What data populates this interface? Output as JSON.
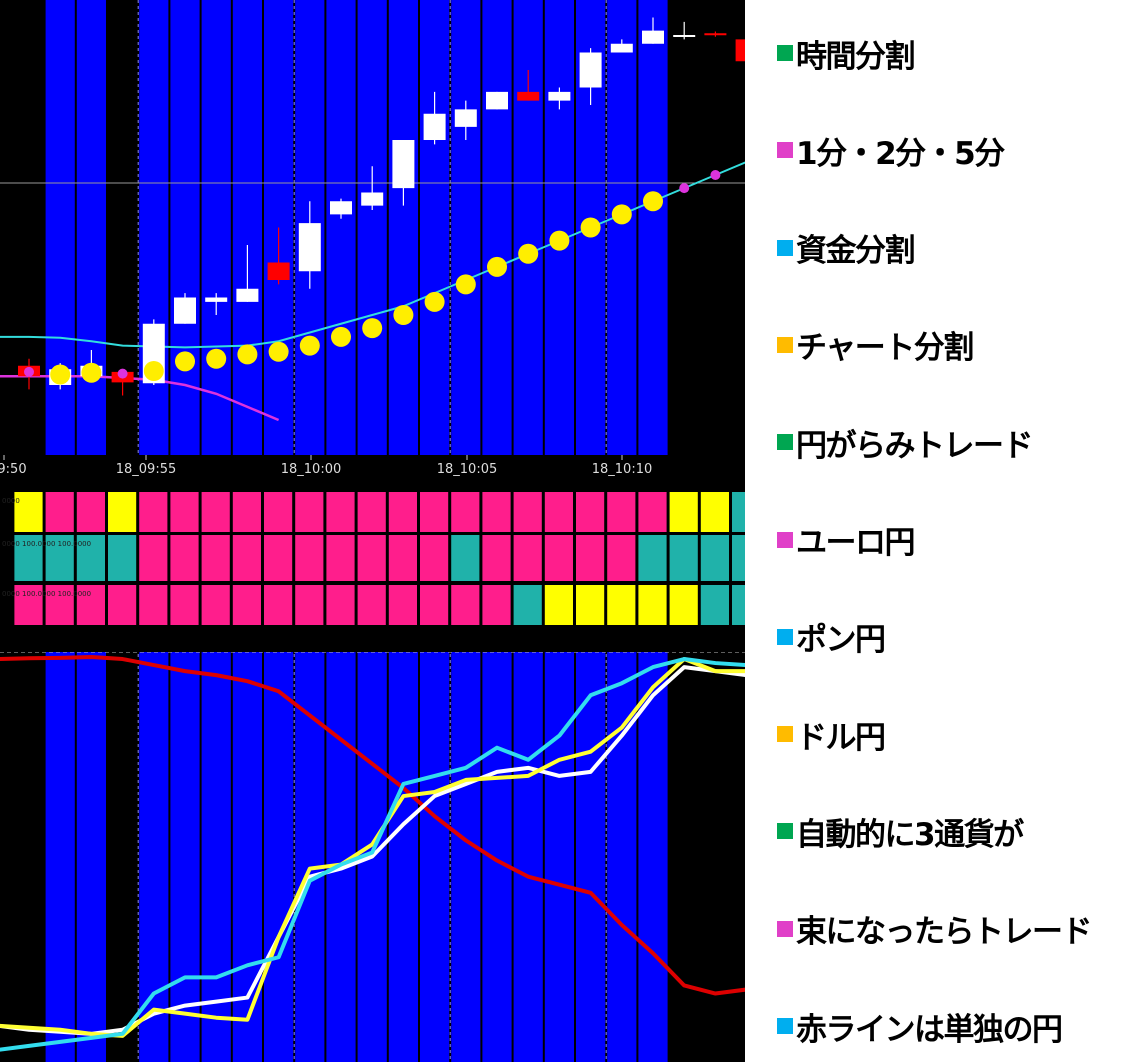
{
  "time_axis": {
    "labels": [
      "9:50",
      "18_09:55",
      "18_10:00",
      "18_10:05",
      "18_10:10"
    ]
  },
  "signal_panel": {
    "row_values": [
      "0000",
      "0000 100.0000 100.0000",
      "0000 100.0000 100.0000"
    ]
  },
  "colors": {
    "bar_blue": "#0000ff",
    "background": "#000000",
    "candle_up": "#ffffff",
    "candle_down": "#ff0000",
    "moving_average": "#33dddd",
    "dot_marker": "#ffee00",
    "magenta_line": "#dd33dd",
    "signal_pink": "#ff1e8c",
    "signal_yellow": "#ffff00",
    "signal_teal": "#20b2aa",
    "line_red": "#dd0000",
    "line_white": "#ffffff",
    "line_yellow": "#ffff33",
    "line_cyan": "#33ddee"
  },
  "legend": {
    "items": [
      {
        "label": "時間分割",
        "color": "#00a651",
        "icon": "square"
      },
      {
        "label": "1分・2分・5分",
        "color": "#e040c8",
        "icon": "square"
      },
      {
        "label": "資金分割",
        "color": "#00aeef",
        "icon": "square"
      },
      {
        "label": "チャート分割",
        "color": "#ffbb00",
        "icon": "square"
      },
      {
        "label": "円がらみトレード",
        "color": "#00a651",
        "icon": "square"
      },
      {
        "label": "ユーロ円",
        "color": "#e040c8",
        "icon": "square"
      },
      {
        "label": "ポン円",
        "color": "#00aeef",
        "icon": "square"
      },
      {
        "label": "ドル円",
        "color": "#ffbb00",
        "icon": "square"
      },
      {
        "label": "自動的に3通貨が",
        "color": "#00a651",
        "icon": "square"
      },
      {
        "label": "束になったらトレード",
        "color": "#e040c8",
        "icon": "square"
      },
      {
        "label": "赤ラインは単独の円",
        "color": "#00aeef",
        "icon": "square"
      }
    ]
  },
  "chart_data": {
    "type": "line",
    "candles": [
      {
        "o": 90.2,
        "c": 89.0,
        "h": 91.0,
        "l": 87.5
      },
      {
        "o": 88.0,
        "c": 89.8,
        "h": 90.5,
        "l": 87.5
      },
      {
        "o": 89.0,
        "c": 90.2,
        "h": 92.0,
        "l": 88.5
      },
      {
        "o": 89.5,
        "c": 88.3,
        "h": 89.8,
        "l": 86.8
      },
      {
        "o": 88.2,
        "c": 95.0,
        "h": 95.5,
        "l": 88.0
      },
      {
        "o": 95.0,
        "c": 98.0,
        "h": 98.5,
        "l": 95.0
      },
      {
        "o": 97.5,
        "c": 98.0,
        "h": 98.5,
        "l": 96.0
      },
      {
        "o": 97.5,
        "c": 99.0,
        "h": 104.0,
        "l": 97.5
      },
      {
        "o": 102.0,
        "c": 100.0,
        "h": 106.0,
        "l": 99.5
      },
      {
        "o": 101.0,
        "c": 106.5,
        "h": 109.0,
        "l": 99.0
      },
      {
        "o": 107.5,
        "c": 109.0,
        "h": 109.3,
        "l": 107.0
      },
      {
        "o": 108.5,
        "c": 110.0,
        "h": 113.0,
        "l": 108.0
      },
      {
        "o": 110.5,
        "c": 116.0,
        "h": 116.0,
        "l": 108.5
      },
      {
        "o": 116.0,
        "c": 119.0,
        "h": 121.5,
        "l": 115.5
      },
      {
        "o": 117.5,
        "c": 119.5,
        "h": 120.5,
        "l": 116.0
      },
      {
        "o": 119.5,
        "c": 121.5,
        "h": 121.5,
        "l": 119.5
      },
      {
        "o": 121.5,
        "c": 120.5,
        "h": 124.0,
        "l": 120.5
      },
      {
        "o": 120.5,
        "c": 121.5,
        "h": 122.0,
        "l": 119.5
      },
      {
        "o": 122.0,
        "c": 126.0,
        "h": 126.5,
        "l": 120.0
      },
      {
        "o": 126.0,
        "c": 127.0,
        "h": 127.5,
        "l": 126.0
      },
      {
        "o": 127.0,
        "c": 128.5,
        "h": 130.0,
        "l": 127.0
      },
      {
        "o": 128.0,
        "c": 128.0,
        "h": 129.5,
        "l": 127.5
      },
      {
        "o": 128.2,
        "c": 128.0,
        "h": 128.4,
        "l": 127.8
      },
      {
        "o": 127.5,
        "c": 125.0,
        "h": 127.8,
        "l": 124.5
      }
    ],
    "dots": [
      {
        "i": 0,
        "v": 89.5,
        "color": "magenta"
      },
      {
        "i": 1,
        "v": 89.2,
        "color": "yellow"
      },
      {
        "i": 2,
        "v": 89.4,
        "color": "yellow"
      },
      {
        "i": 3,
        "v": 89.3,
        "color": "magenta"
      },
      {
        "i": 4,
        "v": 89.6,
        "color": "yellow"
      },
      {
        "i": 5,
        "v": 90.7,
        "color": "yellow"
      },
      {
        "i": 6,
        "v": 91.0,
        "color": "yellow"
      },
      {
        "i": 7,
        "v": 91.5,
        "color": "yellow"
      },
      {
        "i": 8,
        "v": 91.8,
        "color": "yellow"
      },
      {
        "i": 9,
        "v": 92.5,
        "color": "yellow"
      },
      {
        "i": 10,
        "v": 93.5,
        "color": "yellow"
      },
      {
        "i": 11,
        "v": 94.5,
        "color": "yellow"
      },
      {
        "i": 12,
        "v": 96.0,
        "color": "yellow"
      },
      {
        "i": 13,
        "v": 97.5,
        "color": "yellow"
      },
      {
        "i": 14,
        "v": 99.5,
        "color": "yellow"
      },
      {
        "i": 15,
        "v": 101.5,
        "color": "yellow"
      },
      {
        "i": 16,
        "v": 103.0,
        "color": "yellow"
      },
      {
        "i": 17,
        "v": 104.5,
        "color": "yellow"
      },
      {
        "i": 18,
        "v": 106.0,
        "color": "yellow"
      },
      {
        "i": 19,
        "v": 107.5,
        "color": "yellow"
      },
      {
        "i": 20,
        "v": 109.0,
        "color": "yellow"
      },
      {
        "i": 21,
        "v": 110.5,
        "color": "magenta"
      },
      {
        "i": 22,
        "v": 112.0,
        "color": "magenta"
      }
    ],
    "ma_line": [
      93.5,
      93.5,
      93.4,
      93.0,
      92.5,
      92.4,
      92.3,
      92.4,
      92.5,
      93.0,
      94.0,
      95.0,
      96.0,
      97.0,
      98.5,
      100.0,
      101.5,
      103.0,
      104.5,
      106.0,
      107.5,
      109.0,
      110.5,
      112.0,
      113.5
    ],
    "magenta_line": [
      89.0,
      89.0,
      89.0,
      89.0,
      88.8,
      88.6,
      88.0,
      87.0,
      85.5,
      84.0
    ],
    "signal_rows": [
      [
        "yellow",
        "pink",
        "pink",
        "yellow",
        "pink",
        "pink",
        "pink",
        "pink",
        "pink",
        "pink",
        "pink",
        "pink",
        "pink",
        "pink",
        "pink",
        "pink",
        "pink",
        "pink",
        "pink",
        "pink",
        "pink",
        "yellow",
        "yellow",
        "teal"
      ],
      [
        "teal",
        "teal",
        "teal",
        "teal",
        "pink",
        "pink",
        "pink",
        "pink",
        "pink",
        "pink",
        "pink",
        "pink",
        "pink",
        "pink",
        "teal",
        "pink",
        "pink",
        "pink",
        "pink",
        "pink",
        "teal",
        "teal",
        "teal",
        "teal"
      ],
      [
        "pink",
        "pink",
        "pink",
        "pink",
        "pink",
        "pink",
        "pink",
        "pink",
        "pink",
        "pink",
        "pink",
        "pink",
        "pink",
        "pink",
        "pink",
        "pink",
        "teal",
        "yellow",
        "yellow",
        "yellow",
        "yellow",
        "yellow",
        "teal",
        "teal"
      ]
    ],
    "series": [
      {
        "values": [
          99.0,
          99.2,
          99.3,
          99.5,
          99.0,
          97.5,
          96.0,
          95.0,
          93.5,
          91.0,
          85.0,
          79.0,
          73.0,
          67.0,
          60.0,
          54.0,
          49.0,
          45.0,
          43.0,
          41.0,
          33.0,
          26.0,
          18.0,
          16.0,
          17.0
        ]
      },
      {
        "values": [
          8.0,
          7.0,
          6.5,
          6.0,
          7.0,
          11.0,
          13.0,
          14.0,
          15.0,
          30.0,
          45.0,
          47.0,
          50.0,
          58.0,
          65.0,
          68.0,
          71.0,
          72.0,
          70.0,
          71.0,
          80.0,
          90.0,
          97.0,
          96.0,
          95.0
        ]
      },
      {
        "values": [
          8.0,
          7.5,
          7.0,
          6.0,
          5.5,
          12.0,
          11.0,
          10.0,
          9.5,
          30.0,
          47.0,
          48.0,
          53.0,
          65.0,
          66.0,
          69.0,
          69.5,
          70.0,
          74.0,
          76.0,
          82.0,
          92.0,
          99.0,
          96.0,
          96.0
        ]
      },
      {
        "values": [
          2.0,
          3.0,
          4.0,
          5.0,
          6.0,
          16.0,
          20.0,
          20.0,
          23.0,
          25.0,
          44.0,
          48.0,
          51.0,
          68.0,
          70.0,
          72.0,
          77.0,
          74.0,
          80.0,
          90.0,
          93.0,
          97.0,
          99.0,
          98.0,
          97.5
        ]
      }
    ]
  }
}
